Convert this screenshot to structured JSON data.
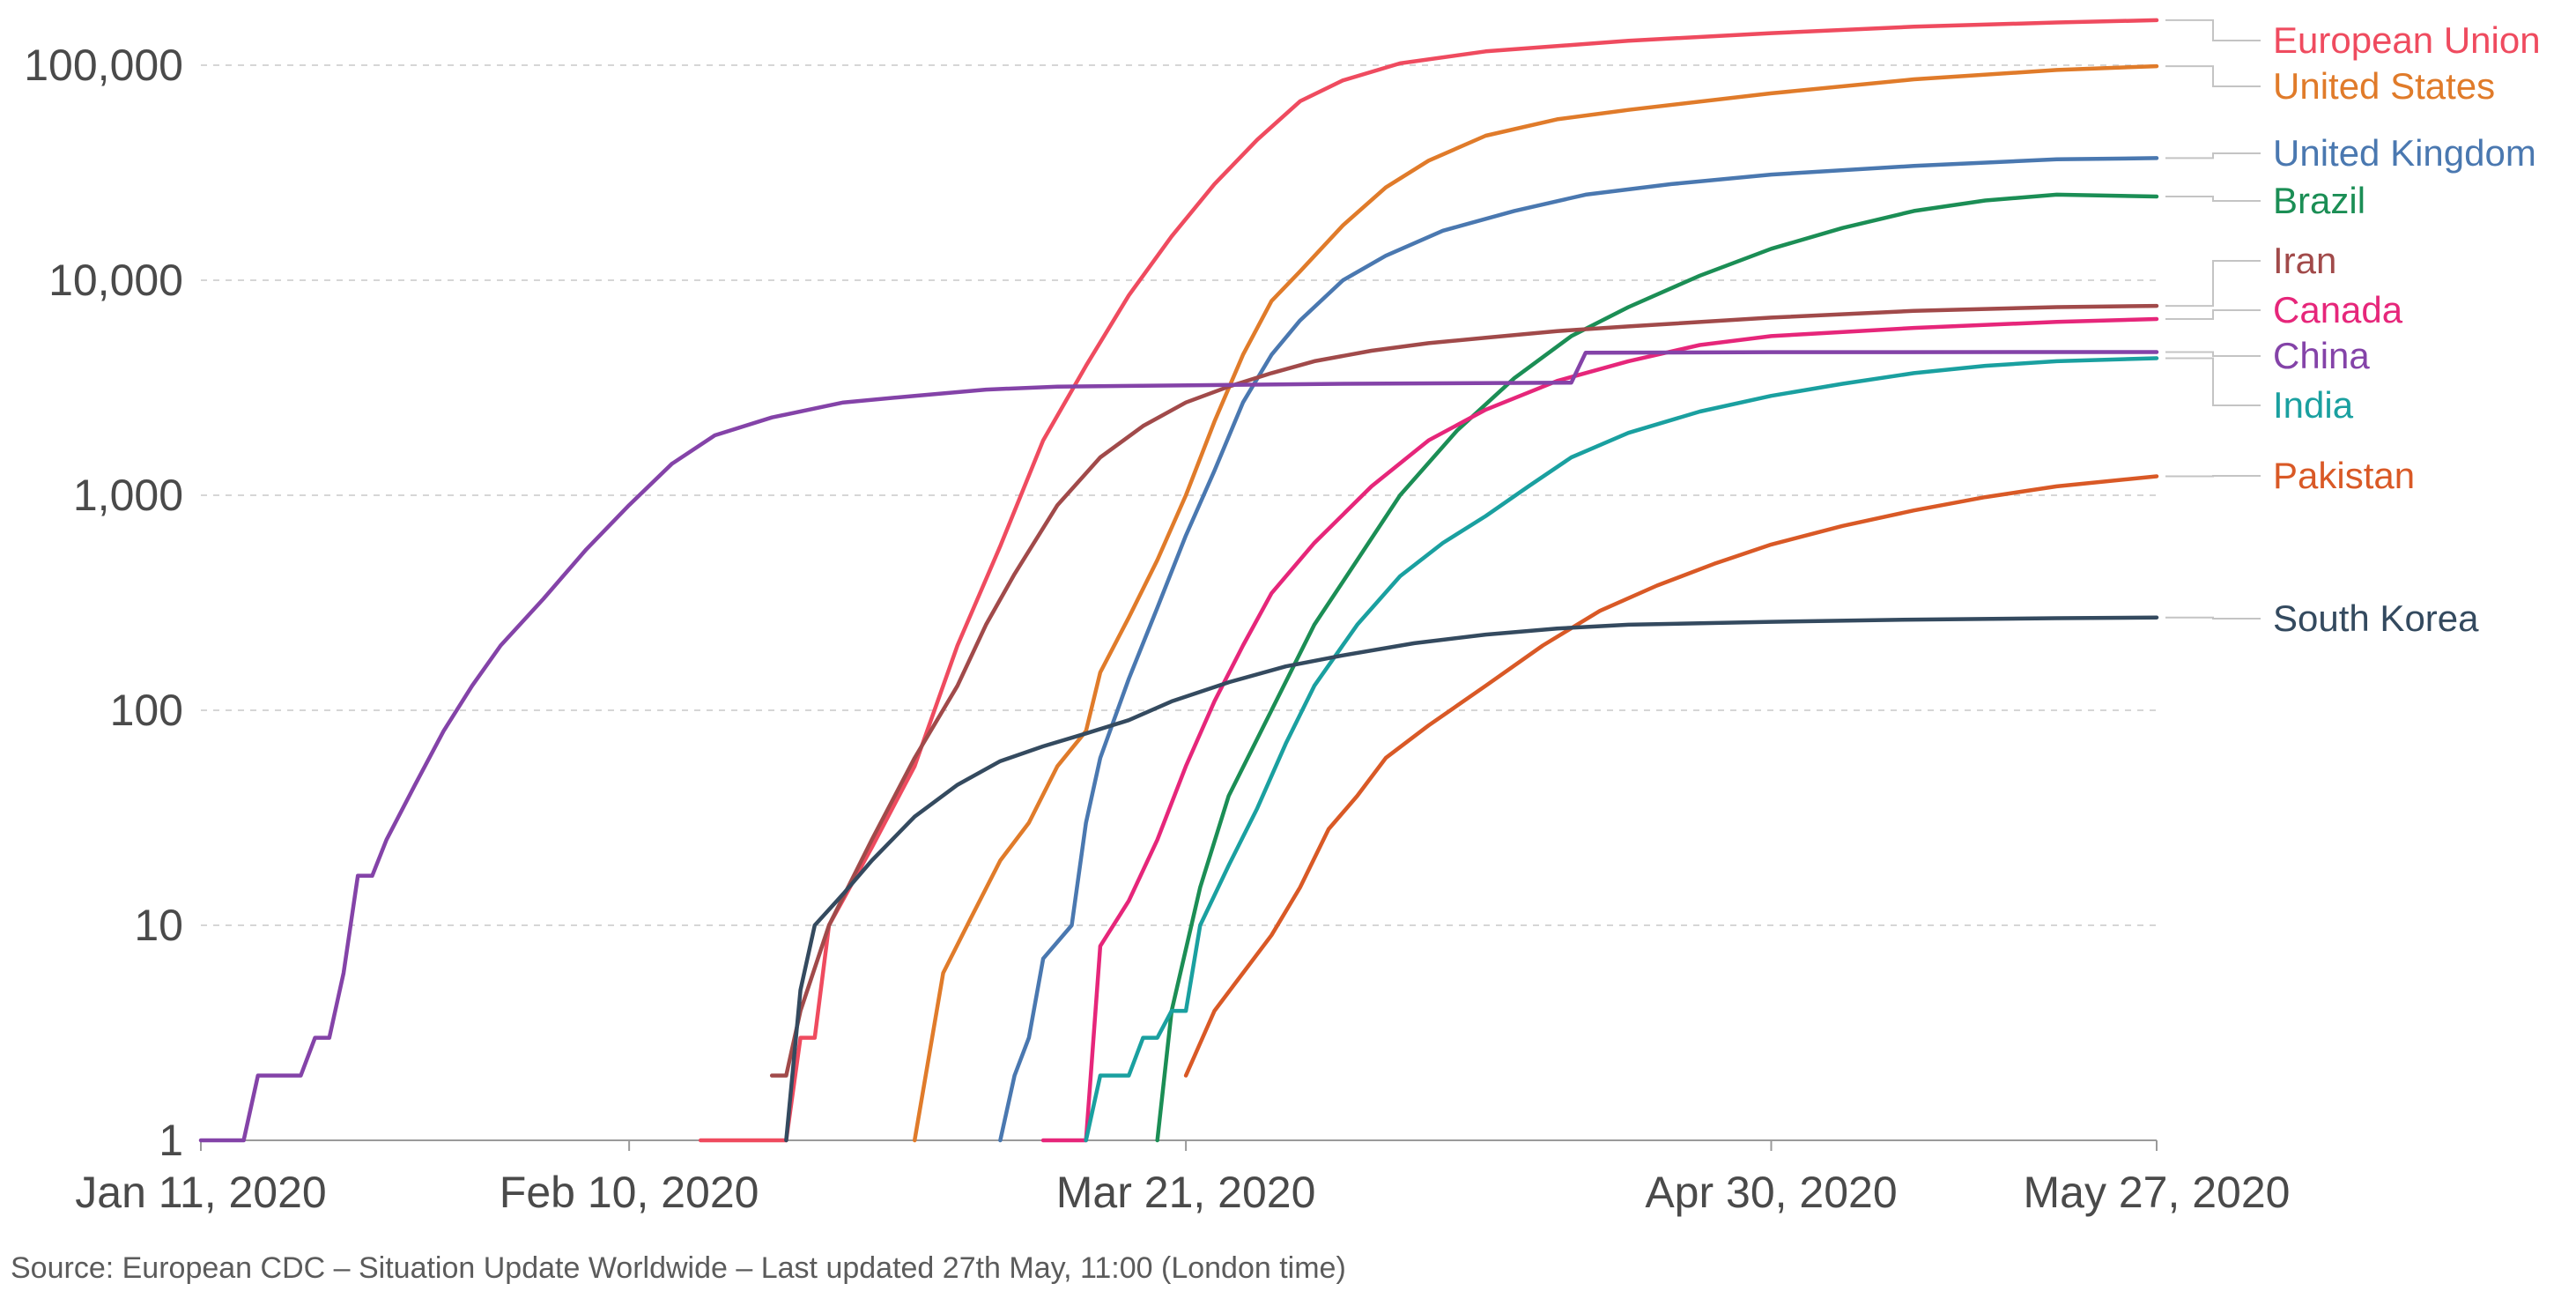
{
  "chart_data": {
    "type": "line",
    "yscale": "log",
    "ylim": [
      1,
      170000
    ],
    "y_ticks": [
      1,
      10,
      100,
      1000,
      10000,
      100000
    ],
    "y_tick_labels": [
      "1",
      "10",
      "100",
      "1,000",
      "10,000",
      "100,000"
    ],
    "x_range_days": [
      0,
      137
    ],
    "x_ticks": [
      0,
      30,
      69,
      110,
      137
    ],
    "x_tick_labels": [
      "Jan 11, 2020",
      "Feb 10, 2020",
      "Mar 21, 2020",
      "Apr 30, 2020",
      "May 27, 2020"
    ],
    "grid": "horizontal-dashed",
    "x_unit": "days since Jan 11, 2020",
    "y_unit": "cumulative confirmed deaths",
    "series": [
      {
        "name": "European Union",
        "color": "#ef4b5f",
        "points": [
          [
            35,
            1
          ],
          [
            41,
            1
          ],
          [
            42,
            3
          ],
          [
            43,
            3
          ],
          [
            44,
            10
          ],
          [
            47,
            23
          ],
          [
            50,
            55
          ],
          [
            53,
            200
          ],
          [
            56,
            580
          ],
          [
            59,
            1800
          ],
          [
            62,
            4000
          ],
          [
            65,
            8500
          ],
          [
            68,
            16000
          ],
          [
            71,
            28000
          ],
          [
            74,
            45000
          ],
          [
            77,
            68000
          ],
          [
            80,
            85000
          ],
          [
            84,
            102000
          ],
          [
            90,
            116000
          ],
          [
            100,
            130000
          ],
          [
            110,
            141000
          ],
          [
            120,
            151000
          ],
          [
            130,
            158000
          ],
          [
            137,
            162000
          ]
        ]
      },
      {
        "name": "United States",
        "color": "#e07b2a",
        "points": [
          [
            50,
            1
          ],
          [
            52,
            6
          ],
          [
            54,
            11
          ],
          [
            56,
            20
          ],
          [
            58,
            30
          ],
          [
            60,
            55
          ],
          [
            62,
            80
          ],
          [
            63,
            150
          ],
          [
            65,
            270
          ],
          [
            67,
            500
          ],
          [
            69,
            1000
          ],
          [
            71,
            2200
          ],
          [
            73,
            4500
          ],
          [
            75,
            8000
          ],
          [
            77,
            11000
          ],
          [
            80,
            18000
          ],
          [
            83,
            27000
          ],
          [
            86,
            36000
          ],
          [
            90,
            47000
          ],
          [
            95,
            56000
          ],
          [
            100,
            62000
          ],
          [
            110,
            74000
          ],
          [
            120,
            86000
          ],
          [
            130,
            95000
          ],
          [
            137,
            99000
          ]
        ]
      },
      {
        "name": "United Kingdom",
        "color": "#4a78b0",
        "points": [
          [
            56,
            1
          ],
          [
            57,
            2
          ],
          [
            58,
            3
          ],
          [
            59,
            7
          ],
          [
            61,
            10
          ],
          [
            62,
            30
          ],
          [
            63,
            60
          ],
          [
            65,
            140
          ],
          [
            67,
            300
          ],
          [
            69,
            650
          ],
          [
            71,
            1300
          ],
          [
            73,
            2700
          ],
          [
            75,
            4500
          ],
          [
            77,
            6500
          ],
          [
            80,
            10000
          ],
          [
            83,
            13000
          ],
          [
            87,
            17000
          ],
          [
            92,
            21000
          ],
          [
            97,
            25000
          ],
          [
            103,
            28000
          ],
          [
            110,
            31000
          ],
          [
            120,
            34000
          ],
          [
            130,
            36500
          ],
          [
            137,
            37000
          ]
        ]
      },
      {
        "name": "Brazil",
        "color": "#1b8e55",
        "points": [
          [
            67,
            1
          ],
          [
            68,
            4
          ],
          [
            70,
            15
          ],
          [
            72,
            40
          ],
          [
            75,
            100
          ],
          [
            78,
            250
          ],
          [
            81,
            500
          ],
          [
            84,
            1000
          ],
          [
            88,
            2000
          ],
          [
            92,
            3500
          ],
          [
            96,
            5500
          ],
          [
            100,
            7500
          ],
          [
            105,
            10500
          ],
          [
            110,
            14000
          ],
          [
            115,
            17500
          ],
          [
            120,
            21000
          ],
          [
            125,
            23500
          ],
          [
            130,
            25000
          ],
          [
            137,
            24500
          ]
        ]
      },
      {
        "name": "Iran",
        "color": "#a14a4a",
        "points": [
          [
            40,
            2
          ],
          [
            41,
            2
          ],
          [
            42,
            4
          ],
          [
            44,
            10
          ],
          [
            47,
            25
          ],
          [
            50,
            60
          ],
          [
            53,
            130
          ],
          [
            55,
            250
          ],
          [
            57,
            430
          ],
          [
            60,
            900
          ],
          [
            63,
            1500
          ],
          [
            66,
            2100
          ],
          [
            69,
            2700
          ],
          [
            72,
            3200
          ],
          [
            75,
            3700
          ],
          [
            78,
            4200
          ],
          [
            82,
            4700
          ],
          [
            86,
            5100
          ],
          [
            90,
            5400
          ],
          [
            95,
            5800
          ],
          [
            100,
            6100
          ],
          [
            110,
            6700
          ],
          [
            120,
            7200
          ],
          [
            130,
            7500
          ],
          [
            137,
            7600
          ]
        ]
      },
      {
        "name": "Canada",
        "color": "#e6267a",
        "points": [
          [
            59,
            1
          ],
          [
            60,
            1
          ],
          [
            61,
            1
          ],
          [
            62,
            1
          ],
          [
            63,
            8
          ],
          [
            65,
            13
          ],
          [
            67,
            25
          ],
          [
            69,
            55
          ],
          [
            71,
            110
          ],
          [
            73,
            200
          ],
          [
            75,
            350
          ],
          [
            78,
            600
          ],
          [
            82,
            1100
          ],
          [
            86,
            1800
          ],
          [
            90,
            2500
          ],
          [
            95,
            3400
          ],
          [
            100,
            4200
          ],
          [
            105,
            5000
          ],
          [
            110,
            5500
          ],
          [
            120,
            6000
          ],
          [
            130,
            6400
          ],
          [
            137,
            6600
          ]
        ]
      },
      {
        "name": "China",
        "color": "#8443a8",
        "points": [
          [
            0,
            1
          ],
          [
            3,
            1
          ],
          [
            4,
            2
          ],
          [
            7,
            2
          ],
          [
            8,
            3
          ],
          [
            9,
            3
          ],
          [
            10,
            6
          ],
          [
            11,
            17
          ],
          [
            12,
            17
          ],
          [
            13,
            25
          ],
          [
            15,
            45
          ],
          [
            17,
            80
          ],
          [
            19,
            130
          ],
          [
            21,
            200
          ],
          [
            24,
            330
          ],
          [
            27,
            560
          ],
          [
            30,
            900
          ],
          [
            33,
            1400
          ],
          [
            36,
            1900
          ],
          [
            40,
            2300
          ],
          [
            45,
            2700
          ],
          [
            50,
            2900
          ],
          [
            55,
            3100
          ],
          [
            60,
            3200
          ],
          [
            70,
            3250
          ],
          [
            80,
            3300
          ],
          [
            96,
            3340
          ],
          [
            97,
            4600
          ],
          [
            110,
            4630
          ],
          [
            137,
            4634
          ]
        ]
      },
      {
        "name": "India",
        "color": "#1aa0a0",
        "points": [
          [
            62,
            1
          ],
          [
            63,
            2
          ],
          [
            65,
            2
          ],
          [
            66,
            3
          ],
          [
            67,
            3
          ],
          [
            68,
            4
          ],
          [
            69,
            4
          ],
          [
            70,
            10
          ],
          [
            72,
            19
          ],
          [
            74,
            35
          ],
          [
            76,
            70
          ],
          [
            78,
            130
          ],
          [
            81,
            250
          ],
          [
            84,
            420
          ],
          [
            87,
            600
          ],
          [
            90,
            800
          ],
          [
            93,
            1100
          ],
          [
            96,
            1500
          ],
          [
            100,
            1950
          ],
          [
            105,
            2450
          ],
          [
            110,
            2900
          ],
          [
            115,
            3300
          ],
          [
            120,
            3700
          ],
          [
            125,
            4000
          ],
          [
            130,
            4200
          ],
          [
            137,
            4340
          ]
        ]
      },
      {
        "name": "Pakistan",
        "color": "#d95926",
        "points": [
          [
            69,
            2
          ],
          [
            71,
            4
          ],
          [
            73,
            6
          ],
          [
            75,
            9
          ],
          [
            77,
            15
          ],
          [
            79,
            28
          ],
          [
            81,
            40
          ],
          [
            83,
            60
          ],
          [
            86,
            85
          ],
          [
            90,
            130
          ],
          [
            94,
            200
          ],
          [
            98,
            290
          ],
          [
            102,
            380
          ],
          [
            106,
            480
          ],
          [
            110,
            590
          ],
          [
            115,
            720
          ],
          [
            120,
            850
          ],
          [
            125,
            980
          ],
          [
            130,
            1100
          ],
          [
            137,
            1225
          ]
        ]
      },
      {
        "name": "South Korea",
        "color": "#344a5f",
        "points": [
          [
            41,
            1
          ],
          [
            42,
            5
          ],
          [
            43,
            10
          ],
          [
            45,
            14
          ],
          [
            47,
            20
          ],
          [
            50,
            32
          ],
          [
            53,
            45
          ],
          [
            56,
            58
          ],
          [
            59,
            68
          ],
          [
            62,
            78
          ],
          [
            65,
            90
          ],
          [
            68,
            110
          ],
          [
            72,
            135
          ],
          [
            76,
            160
          ],
          [
            80,
            180
          ],
          [
            85,
            205
          ],
          [
            90,
            225
          ],
          [
            95,
            240
          ],
          [
            100,
            250
          ],
          [
            110,
            258
          ],
          [
            120,
            264
          ],
          [
            130,
            268
          ],
          [
            137,
            270
          ]
        ]
      }
    ],
    "legend": [
      {
        "label": "European Union",
        "color": "#ef4b5f"
      },
      {
        "label": "United States",
        "color": "#e07b2a"
      },
      {
        "label": "United Kingdom",
        "color": "#4a78b0"
      },
      {
        "label": "Brazil",
        "color": "#1b8e55"
      },
      {
        "label": "Iran",
        "color": "#a14a4a"
      },
      {
        "label": "Canada",
        "color": "#e6267a"
      },
      {
        "label": "China",
        "color": "#8443a8"
      },
      {
        "label": "India",
        "color": "#1aa0a0"
      },
      {
        "label": "Pakistan",
        "color": "#d95926"
      },
      {
        "label": "South Korea",
        "color": "#344a5f"
      }
    ],
    "legend_placement": "right"
  },
  "source_text": "Source: European CDC – Situation Update Worldwide – Last updated 27th May, 11:00 (London time)"
}
